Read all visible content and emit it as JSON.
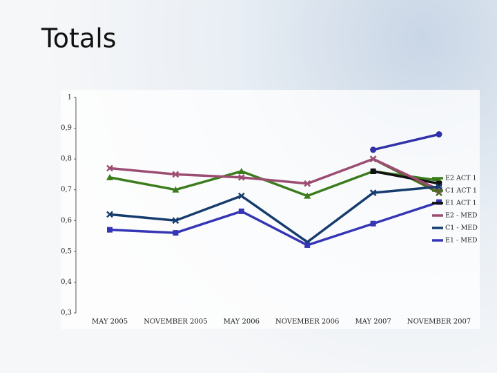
{
  "header": {
    "title": "Totals"
  },
  "chart_data": {
    "type": "line",
    "categories": [
      "MAY 2005",
      "NOVEMBER 2005",
      "MAY 2006",
      "NOVEMBER 2006",
      "MAY 2007",
      "NOVEMBER 2007"
    ],
    "ylim": [
      0.3,
      1
    ],
    "yticks": [
      {
        "value": 0.3,
        "label": "0,3"
      },
      {
        "value": 0.4,
        "label": "0,4"
      },
      {
        "value": 0.5,
        "label": "0,5"
      },
      {
        "value": 0.6,
        "label": "0,6"
      },
      {
        "value": 0.7,
        "label": "0,7"
      },
      {
        "value": 0.8,
        "label": "0,8"
      },
      {
        "value": 0.9,
        "label": "0,9"
      },
      1
    ],
    "legend": "right",
    "series": [
      {
        "name": "E2 ACT 1",
        "color": "#3b7d1c",
        "marker": "triangle",
        "values": [
          0.74,
          0.7,
          0.76,
          0.68,
          0.76,
          0.73
        ]
      },
      {
        "name": "C1 ACT 1",
        "color": "#4f6b22",
        "marker": "x",
        "values": [
          null,
          null,
          null,
          null,
          0.8,
          0.69
        ]
      },
      {
        "name": "E1 ACT 1",
        "color": "#111111",
        "marker": "square",
        "values": [
          null,
          null,
          null,
          null,
          0.76,
          0.72
        ]
      },
      {
        "name": "E2 - MED",
        "color": "#9c4d72",
        "marker": "x",
        "values": [
          0.77,
          0.75,
          0.74,
          0.72,
          0.8,
          0.7
        ]
      },
      {
        "name": "C1 - MED",
        "color": "#163c6e",
        "marker": "x",
        "values": [
          0.62,
          0.6,
          0.68,
          0.53,
          0.69,
          0.71
        ]
      },
      {
        "name": "E1 - MED",
        "color": "#3535b5",
        "marker": "square",
        "values": [
          0.57,
          0.56,
          0.63,
          0.52,
          0.59,
          0.66
        ]
      },
      {
        "color": "#3030a8",
        "marker": "circle",
        "values": [
          null,
          null,
          null,
          null,
          0.83,
          0.88
        ]
      }
    ]
  }
}
